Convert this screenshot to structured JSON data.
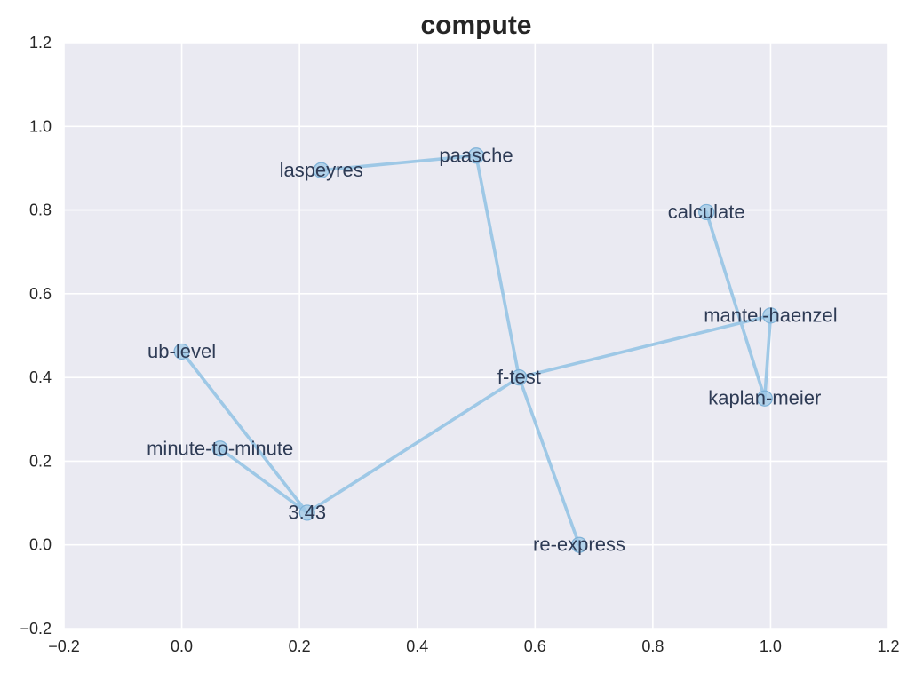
{
  "chart_data": {
    "type": "network-graph",
    "title": "compute",
    "xlim": [
      -0.2,
      1.2
    ],
    "ylim": [
      -0.2,
      1.2
    ],
    "grid": true,
    "x_ticks": [
      "−0.2",
      "0.0",
      "0.2",
      "0.4",
      "0.6",
      "0.8",
      "1.0",
      "1.2"
    ],
    "x_tick_values": [
      -0.2,
      0.0,
      0.2,
      0.4,
      0.6,
      0.8,
      1.0,
      1.2
    ],
    "y_ticks": [
      "−0.2",
      "0.0",
      "0.2",
      "0.4",
      "0.6",
      "0.8",
      "1.0",
      "1.2"
    ],
    "y_tick_values": [
      -0.2,
      0.0,
      0.2,
      0.4,
      0.6,
      0.8,
      1.0,
      1.2
    ],
    "nodes": [
      {
        "label": "laspeyres",
        "x": 0.237,
        "y": 0.895
      },
      {
        "label": "paasche",
        "x": 0.5,
        "y": 0.93
      },
      {
        "label": "calculate",
        "x": 0.891,
        "y": 0.795
      },
      {
        "label": "mantel-haenzel",
        "x": 1.0,
        "y": 0.548
      },
      {
        "label": "kaplan-meier",
        "x": 0.99,
        "y": 0.35
      },
      {
        "label": "ub-level",
        "x": 0.0,
        "y": 0.462
      },
      {
        "label": "f-test",
        "x": 0.573,
        "y": 0.4
      },
      {
        "label": "minute-to-minute",
        "x": 0.065,
        "y": 0.23
      },
      {
        "label": "3.43",
        "x": 0.213,
        "y": 0.077
      },
      {
        "label": "re-express",
        "x": 0.675,
        "y": 0.0
      }
    ],
    "edges": [
      [
        "laspeyres",
        "paasche"
      ],
      [
        "paasche",
        "f-test"
      ],
      [
        "f-test",
        "mantel-haenzel"
      ],
      [
        "f-test",
        "re-express"
      ],
      [
        "f-test",
        "3.43"
      ],
      [
        "3.43",
        "ub-level"
      ],
      [
        "3.43",
        "minute-to-minute"
      ],
      [
        "mantel-haenzel",
        "kaplan-meier"
      ],
      [
        "kaplan-meier",
        "calculate"
      ]
    ],
    "colors": {
      "background": "#eaeaf2",
      "grid": "#ffffff",
      "edge": "#9ec8e6",
      "node": "#9ec8e6",
      "label": "#2e3b55",
      "text": "#262626"
    }
  }
}
